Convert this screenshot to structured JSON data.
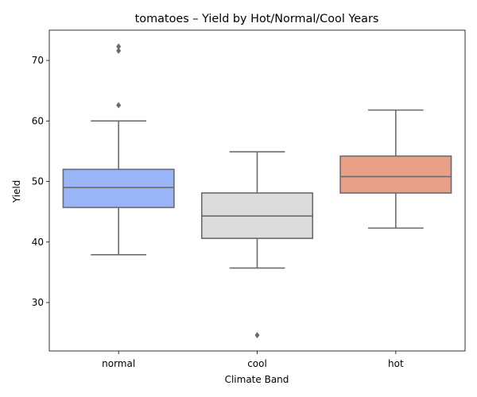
{
  "chart_data": {
    "type": "box",
    "title": "tomatoes – Yield by Hot/Normal/Cool Years",
    "xlabel": "Climate Band",
    "ylabel": "Yield",
    "ylim": [
      22,
      75
    ],
    "yticks": [
      30,
      40,
      50,
      60,
      70
    ],
    "grid": false,
    "legend": "none",
    "categories": [
      "normal",
      "cool",
      "hot"
    ],
    "boxes": [
      {
        "category": "normal",
        "color": "#9ab4f8",
        "whisker_low": 37.9,
        "q1": 45.7,
        "median": 49.0,
        "q3": 52.0,
        "whisker_high": 60.0,
        "outliers": [
          72.3,
          71.6,
          62.6
        ]
      },
      {
        "category": "cool",
        "color": "#dcdcdc",
        "whisker_low": 35.7,
        "q1": 40.6,
        "median": 44.3,
        "q3": 48.1,
        "whisker_high": 54.9,
        "outliers": [
          24.6
        ]
      },
      {
        "category": "hot",
        "color": "#e9a088",
        "whisker_low": 42.3,
        "q1": 48.1,
        "median": 50.8,
        "q3": 54.2,
        "whisker_high": 61.8,
        "outliers": []
      }
    ]
  }
}
